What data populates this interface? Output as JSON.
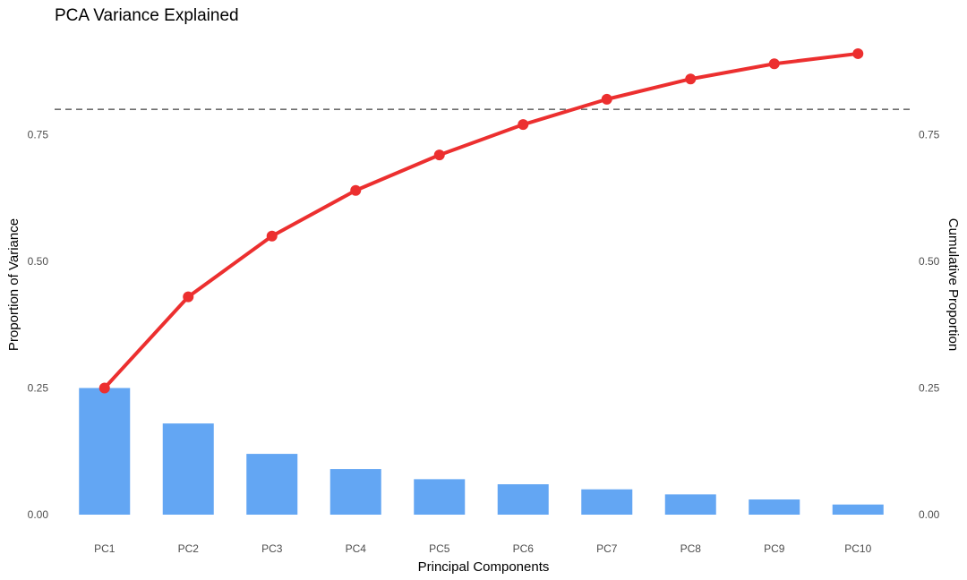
{
  "chart_data": {
    "type": "bar",
    "title": "PCA Variance Explained",
    "xlabel": "Principal Components",
    "ylabel": "Proportion of Variance",
    "y2label": "Cumulative Proportion",
    "categories": [
      "PC1",
      "PC2",
      "PC3",
      "PC4",
      "PC5",
      "PC6",
      "PC7",
      "PC8",
      "PC9",
      "PC10"
    ],
    "series": [
      {
        "type": "bar",
        "values": [
          0.25,
          0.18,
          0.12,
          0.09,
          0.07,
          0.06,
          0.05,
          0.04,
          0.03,
          0.02
        ],
        "color": "#63a6f3"
      },
      {
        "type": "line",
        "values": [
          0.25,
          0.43,
          0.55,
          0.64,
          0.71,
          0.77,
          0.82,
          0.86,
          0.89,
          0.91
        ],
        "color": "#ec2f2f"
      }
    ],
    "reference_line": {
      "y": 0.8,
      "style": "dashed",
      "color": "#6e6e6e"
    },
    "ylim": [
      0,
      0.95
    ],
    "yticks": [
      0.0,
      0.25,
      0.5,
      0.75
    ],
    "ytick_labels": [
      "0.00",
      "0.25",
      "0.50",
      "0.75"
    ],
    "y2ticks": [
      0.0,
      0.25,
      0.5,
      0.75
    ],
    "y2tick_labels": [
      "0.00",
      "0.25",
      "0.50",
      "0.75"
    ],
    "grid": false,
    "legend": "none"
  }
}
